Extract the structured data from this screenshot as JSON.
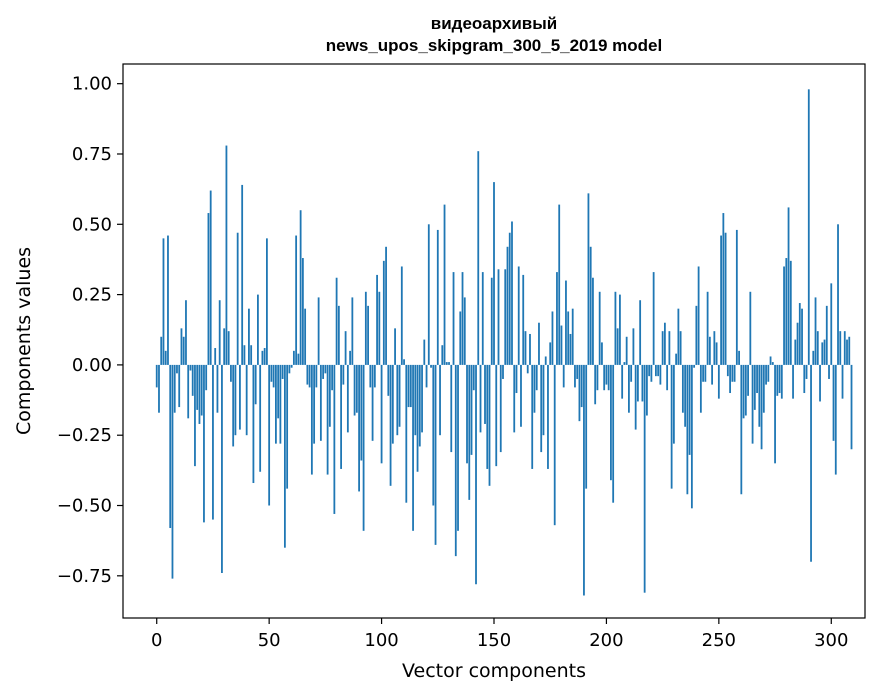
{
  "chart_data": {
    "type": "bar",
    "title_line1": "видеоархивый",
    "title_line2": "news_upos_skipgram_300_5_2019 model",
    "xlabel": "Vector components",
    "ylabel": "Components values",
    "xlim": [
      -15,
      315
    ],
    "ylim": [
      -0.9,
      1.07
    ],
    "grid": false,
    "xticks": [
      0,
      50,
      100,
      150,
      200,
      250,
      300
    ],
    "xtick_labels": [
      "0",
      "50",
      "100",
      "150",
      "200",
      "250",
      "300"
    ],
    "yticks": [
      1.0,
      0.75,
      0.5,
      0.25,
      0.0,
      -0.25,
      -0.5,
      -0.75
    ],
    "ytick_labels": [
      "1.00",
      "0.75",
      "0.50",
      "0.25",
      "0.00",
      "−0.25",
      "−0.50",
      "−0.75"
    ],
    "bar_color": "#1f77b4",
    "values": [
      -0.08,
      -0.17,
      0.1,
      0.45,
      0.05,
      0.46,
      -0.58,
      -0.76,
      -0.17,
      -0.03,
      -0.15,
      0.13,
      0.1,
      0.23,
      -0.19,
      -0.02,
      -0.11,
      -0.36,
      -0.16,
      -0.21,
      -0.18,
      -0.56,
      -0.09,
      0.54,
      0.62,
      -0.55,
      0.06,
      -0.17,
      0.23,
      -0.74,
      0.13,
      0.78,
      0.12,
      -0.06,
      -0.29,
      -0.25,
      0.47,
      -0.23,
      0.64,
      0.07,
      -0.25,
      0.2,
      0.07,
      -0.42,
      -0.14,
      0.25,
      -0.38,
      0.05,
      0.06,
      0.45,
      -0.5,
      -0.06,
      -0.08,
      -0.28,
      -0.19,
      -0.28,
      -0.05,
      -0.65,
      -0.44,
      -0.03,
      -0.01,
      0.05,
      0.46,
      0.04,
      0.55,
      0.38,
      0.2,
      -0.07,
      -0.08,
      -0.39,
      -0.28,
      -0.08,
      0.24,
      -0.27,
      -0.05,
      -0.03,
      -0.39,
      -0.22,
      -0.09,
      -0.53,
      0.31,
      0.21,
      -0.37,
      -0.07,
      0.12,
      -0.24,
      0.05,
      0.24,
      -0.18,
      -0.17,
      -0.45,
      -0.34,
      -0.59,
      0.26,
      0.21,
      -0.08,
      -0.27,
      -0.08,
      0.32,
      0.26,
      -0.35,
      0.37,
      0.42,
      -0.11,
      -0.43,
      -0.28,
      0.13,
      -0.25,
      -0.22,
      0.35,
      0.02,
      -0.49,
      -0.15,
      -0.15,
      -0.59,
      -0.25,
      -0.38,
      -0.29,
      -0.24,
      0.09,
      -0.08,
      0.5,
      -0.01,
      -0.5,
      -0.64,
      0.48,
      -0.25,
      0.07,
      0.57,
      0.01,
      0.01,
      -0.31,
      0.33,
      -0.68,
      -0.59,
      0.19,
      0.33,
      0.24,
      -0.35,
      -0.48,
      -0.32,
      -0.09,
      -0.78,
      0.76,
      -0.24,
      0.33,
      -0.21,
      -0.37,
      -0.43,
      0.31,
      0.65,
      -0.36,
      0.34,
      -0.31,
      -0.05,
      0.34,
      0.42,
      0.47,
      0.51,
      -0.24,
      -0.1,
      0.35,
      -0.22,
      0.32,
      0.12,
      -0.03,
      0.11,
      -0.37,
      -0.17,
      -0.09,
      0.15,
      -0.31,
      -0.25,
      0.03,
      -0.37,
      0.08,
      0.19,
      -0.57,
      0.33,
      0.57,
      0.14,
      -0.08,
      0.3,
      0.19,
      0.11,
      0.2,
      -0.08,
      -0.05,
      -0.2,
      -0.15,
      -0.82,
      -0.44,
      0.61,
      0.42,
      0.31,
      -0.14,
      -0.09,
      0.26,
      0.08,
      -0.09,
      -0.07,
      -0.09,
      -0.41,
      -0.49,
      0.26,
      0.13,
      0.25,
      -0.12,
      0.01,
      0.1,
      -0.17,
      -0.06,
      0.13,
      -0.23,
      -0.13,
      0.23,
      -0.13,
      -0.81,
      -0.18,
      -0.04,
      -0.06,
      0.33,
      -0.04,
      -0.04,
      -0.07,
      0.12,
      0.15,
      -0.09,
      0.12,
      -0.44,
      -0.28,
      0.04,
      0.2,
      0.12,
      -0.17,
      -0.22,
      -0.46,
      -0.32,
      -0.51,
      -0.01,
      0.21,
      0.35,
      -0.17,
      -0.06,
      -0.06,
      0.26,
      0.1,
      -0.07,
      0.12,
      0.08,
      -0.12,
      0.46,
      0.54,
      0.47,
      -0.04,
      -0.1,
      -0.06,
      -0.06,
      0.48,
      0.05,
      -0.46,
      -0.19,
      -0.18,
      -0.11,
      0.26,
      -0.28,
      -0.16,
      -0.1,
      -0.22,
      -0.3,
      -0.17,
      -0.07,
      -0.06,
      0.03,
      0.01,
      -0.35,
      -0.11,
      -0.1,
      -0.12,
      0.35,
      0.38,
      0.56,
      0.37,
      -0.12,
      0.09,
      0.15,
      0.22,
      0.2,
      -0.1,
      -0.05,
      0.98,
      -0.7,
      0.05,
      0.24,
      0.12,
      -0.13,
      0.08,
      0.09,
      0.21,
      -0.05,
      0.29,
      -0.27,
      -0.39,
      0.5,
      0.12,
      -0.12,
      0.12,
      0.09,
      0.1,
      -0.3
    ]
  }
}
